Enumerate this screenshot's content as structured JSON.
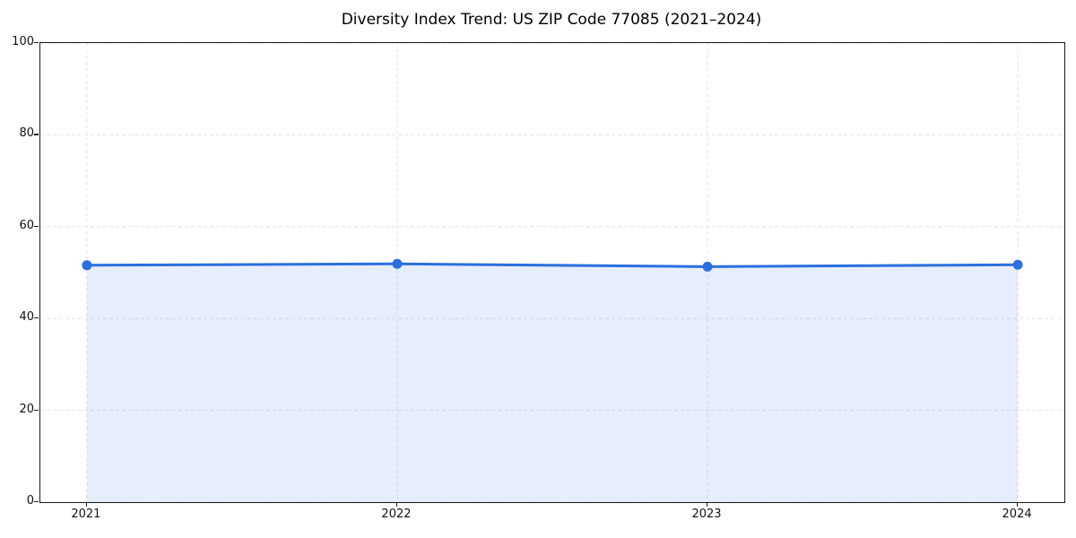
{
  "title": "Diversity Index Trend: US ZIP Code 77085 (2021–2024)",
  "chart_data": {
    "type": "area",
    "title": "Diversity Index Trend: US ZIP Code 77085 (2021–2024)",
    "x": [
      2021,
      2022,
      2023,
      2024
    ],
    "xtick_labels": [
      "2021",
      "2022",
      "2023",
      "2024"
    ],
    "series": [
      {
        "name": "Diversity Index",
        "values": [
          51.6,
          51.9,
          51.3,
          51.7
        ]
      }
    ],
    "xlim": [
      2020.85,
      2024.15
    ],
    "ylim": [
      0,
      100
    ],
    "yticks": [
      0,
      20,
      40,
      60,
      80,
      100
    ],
    "ytick_labels": [
      "0",
      "20",
      "40",
      "60",
      "80",
      "100"
    ],
    "grid": "dashed",
    "grid_color": "#e4e4e4",
    "legend_position": "none",
    "line_color": "#2a6fdf",
    "marker_color": "#2a6fdf",
    "fill_color": "rgba(47,111,223,0.12)",
    "axis_color": "#1a1a1a",
    "marker": "circle"
  }
}
